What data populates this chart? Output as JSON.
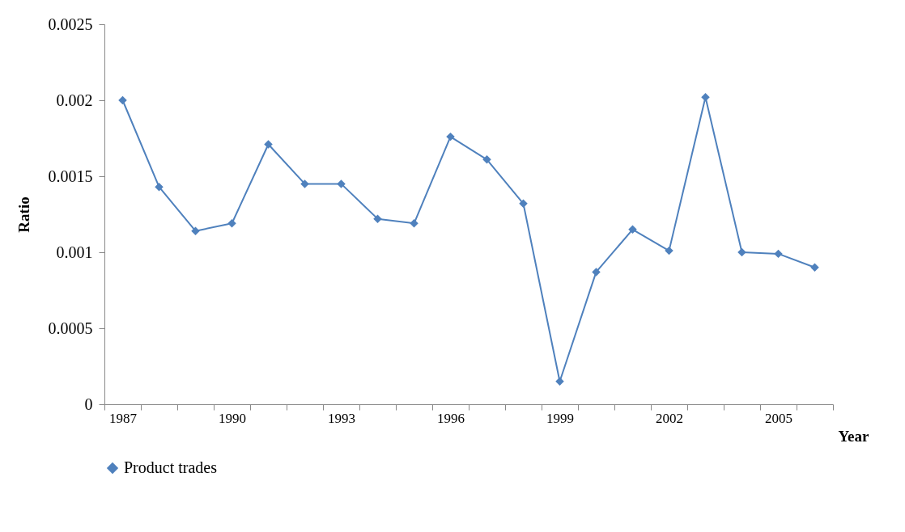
{
  "chart_data": {
    "type": "line",
    "xlabel": "Year",
    "ylabel": "Ratio",
    "categories": [
      "1987",
      null,
      null,
      "1990",
      null,
      null,
      "1993",
      null,
      null,
      "1996",
      null,
      null,
      "1999",
      null,
      null,
      "2002",
      null,
      null,
      "2005",
      null
    ],
    "series": [
      {
        "name": "Product trades",
        "color": "#4f81bd",
        "values": [
          0.002,
          0.00143,
          0.00114,
          0.00119,
          0.00171,
          0.00145,
          0.00145,
          0.00122,
          0.00119,
          0.00176,
          0.00161,
          0.00132,
          0.00015,
          0.00087,
          0.00115,
          0.00101,
          0.00202,
          0.001,
          0.00099,
          0.0009
        ]
      }
    ],
    "ylim": [
      0,
      0.0025
    ],
    "yticks": [
      0,
      0.0005,
      0.001,
      0.0015,
      0.002,
      0.0025
    ],
    "marker": "diamond",
    "line_style": "solid",
    "legend": "bottom",
    "grid": false
  }
}
